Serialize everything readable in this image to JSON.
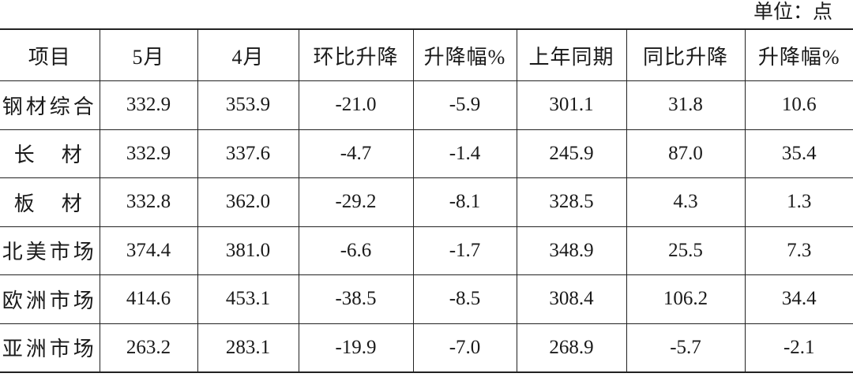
{
  "unit_label": "单位：点",
  "table": {
    "headers": [
      "项目",
      "5月",
      "4月",
      "环比升降",
      "升降幅%",
      "上年同期",
      "同比升降",
      "升降幅%"
    ],
    "rows": [
      [
        "钢材综合",
        "332.9",
        "353.9",
        "-21.0",
        "-5.9",
        "301.1",
        "31.8",
        "10.6"
      ],
      [
        "长　材",
        "332.9",
        "337.6",
        "-4.7",
        "-1.4",
        "245.9",
        "87.0",
        "35.4"
      ],
      [
        "板　材",
        "332.8",
        "362.0",
        "-29.2",
        "-8.1",
        "328.5",
        "4.3",
        "1.3"
      ],
      [
        "北美市场",
        "374.4",
        "381.0",
        "-6.6",
        "-1.7",
        "348.9",
        "25.5",
        "7.3"
      ],
      [
        "欧洲市场",
        "414.6",
        "453.1",
        "-38.5",
        "-8.5",
        "308.4",
        "106.2",
        "34.4"
      ],
      [
        "亚洲市场",
        "263.2",
        "283.1",
        "-19.9",
        "-7.0",
        "268.9",
        "-5.7",
        "-2.1"
      ]
    ]
  }
}
